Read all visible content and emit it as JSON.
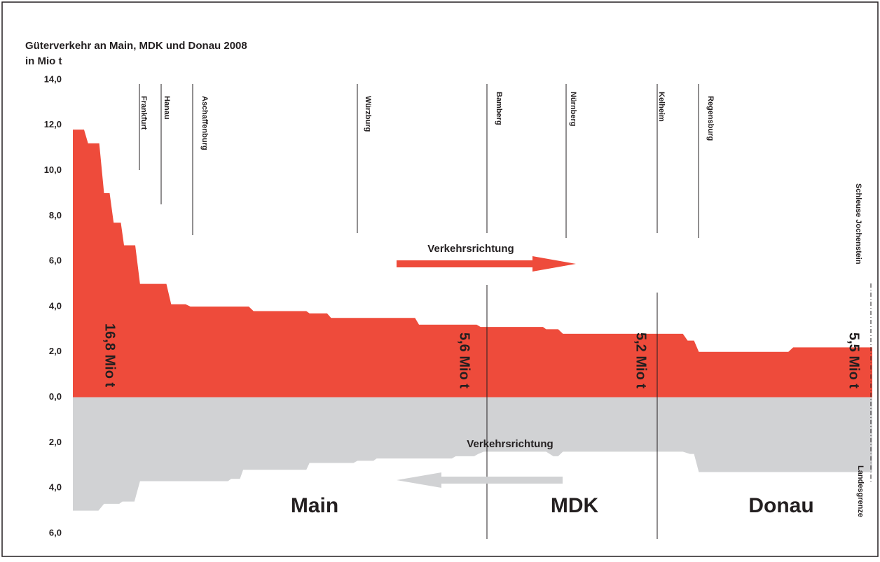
{
  "chart_data": {
    "type": "area",
    "title": "Güterverkehr an Main, MDK und Donau 2008",
    "subtitle": "in Mio t",
    "xlim": [
      0,
      100
    ],
    "ylim": [
      -6,
      14
    ],
    "yticks": [
      {
        "value": 14,
        "label": "14,0"
      },
      {
        "value": 12,
        "label": "12,0"
      },
      {
        "value": 10,
        "label": "10,0"
      },
      {
        "value": 8,
        "label": "8,0"
      },
      {
        "value": 6,
        "label": "6,0"
      },
      {
        "value": 4,
        "label": "4,0"
      },
      {
        "value": 2,
        "label": "2,0"
      },
      {
        "value": 0,
        "label": "0,0"
      },
      {
        "value": -2,
        "label": "2,0"
      },
      {
        "value": -4,
        "label": "4,0"
      },
      {
        "value": -6,
        "label": "6,0"
      }
    ],
    "series": [
      {
        "color": "#ee4b3b",
        "x": [
          0,
          1.4,
          1.9,
          3.3,
          3.9,
          4.6,
          5.1,
          6.0,
          6.4,
          7.8,
          8.4,
          11.7,
          12.3,
          14.1,
          14.7,
          22.0,
          22.6,
          29.2,
          29.6,
          31.8,
          32.3,
          42.8,
          43.3,
          50.5,
          51.0,
          58.8,
          59.2,
          60.7,
          61.3,
          76.3,
          76.9,
          77.7,
          78.3,
          89.5,
          90.1,
          100
        ],
        "values": [
          11.8,
          11.8,
          11.2,
          11.2,
          9.0,
          9.0,
          7.7,
          7.7,
          6.7,
          6.7,
          5.0,
          5.0,
          4.1,
          4.1,
          4.0,
          4.0,
          3.8,
          3.8,
          3.7,
          3.7,
          3.5,
          3.5,
          3.2,
          3.2,
          3.1,
          3.1,
          3.0,
          3.0,
          2.8,
          2.8,
          2.5,
          2.5,
          2.0,
          2.0,
          2.2,
          2.2
        ]
      },
      {
        "color": "#d1d2d4",
        "x": [
          0,
          3.2,
          3.9,
          5.8,
          6.2,
          7.7,
          8.4,
          19.4,
          19.8,
          20.9,
          21.3,
          29.2,
          29.6,
          35.1,
          35.6,
          37.6,
          38.0,
          47.4,
          47.9,
          50.2,
          50.7,
          51.4,
          59.2,
          60.1,
          60.7,
          61.3,
          76.3,
          77.2,
          77.7,
          78.3,
          100
        ],
        "values": [
          -5.0,
          -5.0,
          -4.7,
          -4.7,
          -4.6,
          -4.6,
          -3.7,
          -3.7,
          -3.6,
          -3.6,
          -3.2,
          -3.2,
          -2.9,
          -2.9,
          -2.8,
          -2.8,
          -2.7,
          -2.7,
          -2.6,
          -2.6,
          -2.5,
          -2.4,
          -2.4,
          -2.6,
          -2.6,
          -2.4,
          -2.4,
          -2.5,
          -2.5,
          -3.3,
          -3.3
        ]
      }
    ],
    "annotations": [
      "Frankfurt",
      "Hanau",
      "Aschaffenburg",
      "Würzburg",
      "Bamberg",
      "Nürnberg",
      "Kelheim",
      "Regensburg",
      "Schleuse Jochenstein",
      "Landesgrenze",
      "Verkehrsrichtung",
      "Verkehrsrichtung",
      "16,8 Mio t",
      "5,6 Mio t",
      "5,2 Mio t",
      "5,5 Mio t",
      "Main",
      "MDK",
      "Donau"
    ]
  }
}
